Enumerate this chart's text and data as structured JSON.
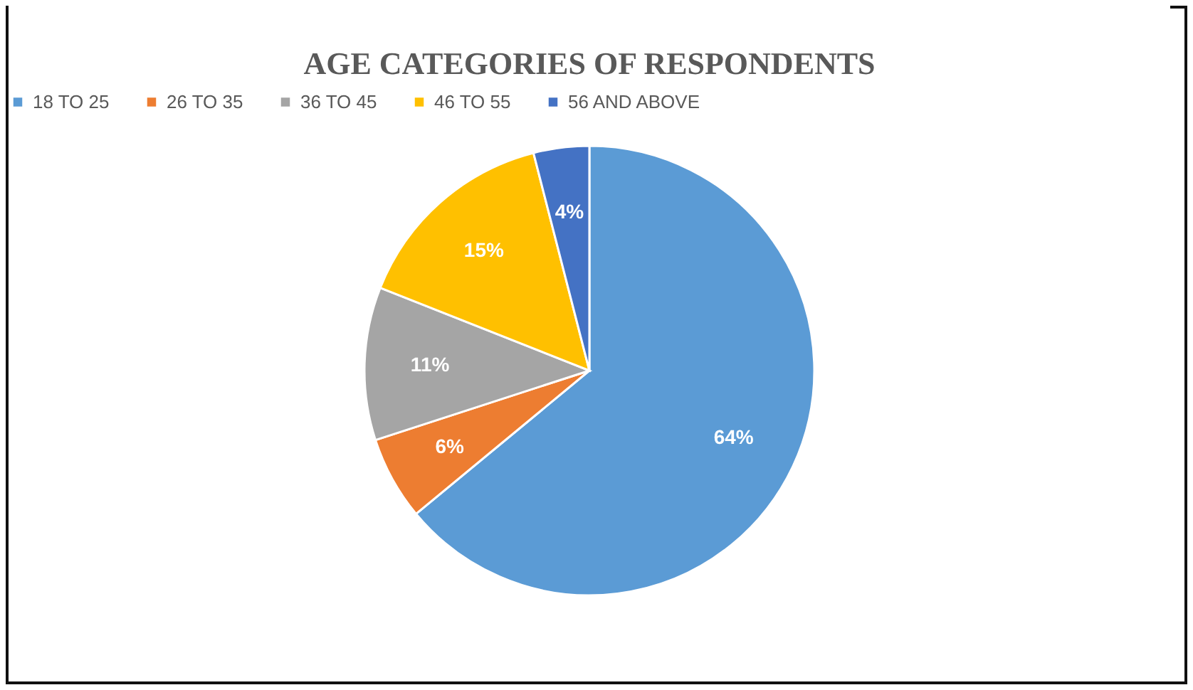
{
  "chart_data": {
    "type": "pie",
    "title": "AGE CATEGORIES OF RESPONDENTS",
    "categories": [
      "18 TO 25",
      "26 TO 35",
      "36 TO 45",
      "46 TO 55",
      "56 AND ABOVE"
    ],
    "values": [
      64,
      6,
      11,
      15,
      4
    ],
    "colors": [
      "#5b9bd5",
      "#ed7d31",
      "#a5a5a5",
      "#ffc000",
      "#4472c4"
    ],
    "value_labels": [
      "64%",
      "6%",
      "11%",
      "15%",
      "4%"
    ],
    "legend": "top"
  }
}
